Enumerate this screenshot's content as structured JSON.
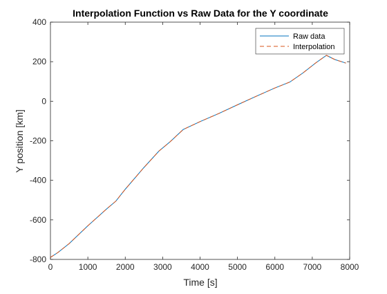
{
  "chart_data": {
    "type": "line",
    "title": "Interpolation Function vs Raw Data for the Y coordinate",
    "xlabel": "Time [s]",
    "ylabel": "Y position [km]",
    "xlim": [
      0,
      8000
    ],
    "ylim": [
      -800,
      400
    ],
    "xticks": [
      0,
      1000,
      2000,
      3000,
      4000,
      5000,
      6000,
      7000,
      8000
    ],
    "yticks": [
      -800,
      -600,
      -400,
      -200,
      0,
      200,
      400
    ],
    "grid": false,
    "legend_position": "top-right",
    "series": [
      {
        "name": "Raw data",
        "color": "#0072BD",
        "style": "solid",
        "x": [
          0,
          200,
          500,
          1000,
          1500,
          1750,
          2000,
          2500,
          2900,
          3200,
          3550,
          4000,
          4500,
          5000,
          5500,
          6000,
          6400,
          6750,
          7100,
          7380,
          7600,
          7900
        ],
        "y": [
          -790,
          -765,
          -720,
          -630,
          -545,
          -505,
          -445,
          -335,
          -252,
          -205,
          -143,
          -103,
          -62,
          -18,
          25,
          67,
          97,
          143,
          195,
          232,
          211,
          193
        ]
      },
      {
        "name": "Interpolation",
        "color": "#D95319",
        "style": "dashed",
        "x": [
          0,
          200,
          500,
          1000,
          1500,
          1750,
          2000,
          2500,
          2900,
          3200,
          3550,
          4000,
          4500,
          5000,
          5500,
          6000,
          6400,
          6750,
          7100,
          7380,
          7600,
          7900
        ],
        "y": [
          -790,
          -765,
          -720,
          -630,
          -545,
          -505,
          -445,
          -335,
          -252,
          -205,
          -143,
          -103,
          -62,
          -18,
          25,
          67,
          97,
          143,
          195,
          232,
          211,
          193
        ]
      }
    ]
  }
}
